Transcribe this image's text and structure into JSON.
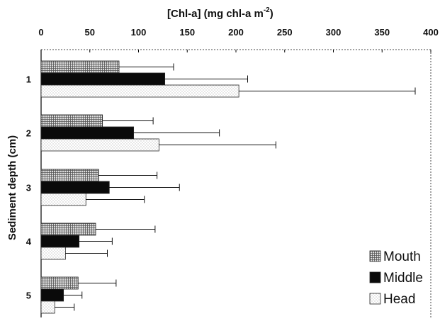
{
  "chart_data": {
    "type": "bar",
    "orientation": "horizontal",
    "title": "",
    "xlabel": "[Chl-a] (mg chl-a m",
    "xlabel_superscript": "-2",
    "xlabel_suffix": ")",
    "ylabel": "Sediment depth  (cm)",
    "xlim": [
      0,
      400
    ],
    "x_ticks": [
      "0",
      "50",
      "100",
      "150",
      "200",
      "250",
      "300",
      "350",
      "400"
    ],
    "categories": [
      "1",
      "2",
      "3",
      "4",
      "5"
    ],
    "series": [
      {
        "name": "Mouth",
        "values": [
          80,
          63,
          59,
          56,
          38
        ],
        "errors": [
          56,
          52,
          60,
          61,
          39
        ]
      },
      {
        "name": "Middle",
        "values": [
          127,
          95,
          70,
          39,
          23
        ],
        "errors": [
          85,
          88,
          72,
          34,
          19
        ]
      },
      {
        "name": "Head",
        "values": [
          203,
          121,
          46,
          25,
          14
        ],
        "errors": [
          181,
          120,
          60,
          43,
          20
        ]
      }
    ],
    "grid": false,
    "legend_position": "bottom-right",
    "colors": {
      "Mouth": "#d8d8d8",
      "Middle": "#0a0a0a",
      "Head": "#f2f2f2"
    }
  }
}
